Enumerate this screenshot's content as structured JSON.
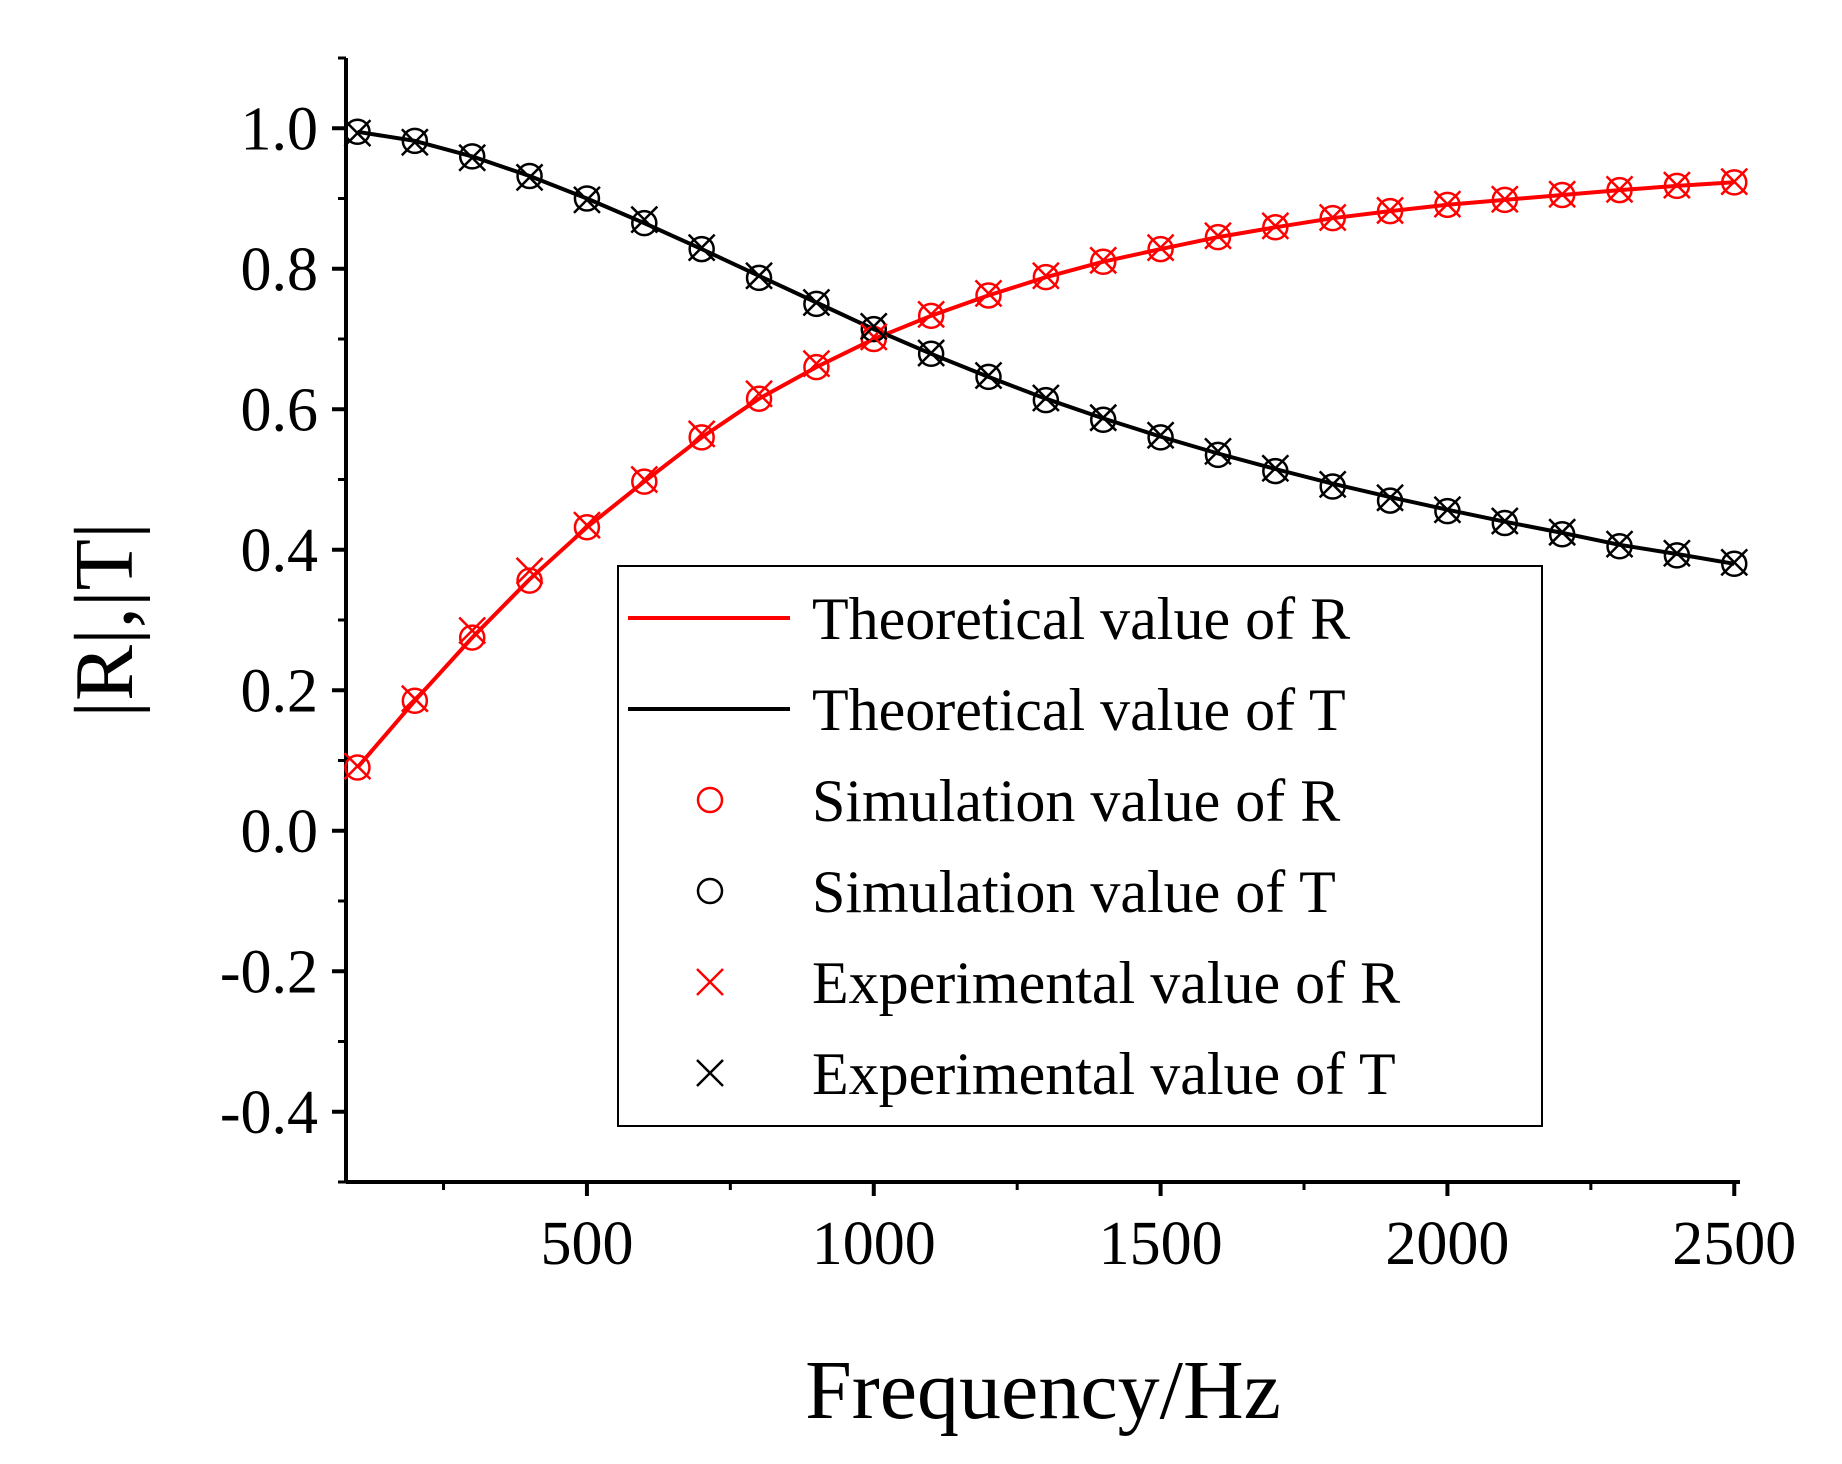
{
  "chart_data": {
    "type": "line",
    "title": "",
    "xlabel": "Frequency/Hz",
    "ylabel": "|R|,|T|",
    "xlim": [
      80,
      2510
    ],
    "ylim": [
      -0.5,
      1.1
    ],
    "xticks": [
      500,
      1000,
      1500,
      2000,
      2500
    ],
    "xtick_labels": [
      "500",
      "1000",
      "1500",
      "2000",
      "2500"
    ],
    "yticks": [
      -0.4,
      -0.2,
      0.0,
      0.2,
      0.4,
      0.6,
      0.8,
      1.0
    ],
    "ytick_labels": [
      "-0.4",
      "-0.2",
      "0.0",
      "0.2",
      "0.4",
      "0.6",
      "0.8",
      "1.0"
    ],
    "grid": false,
    "legend_position": "bottom-right",
    "x": [
      100,
      200,
      300,
      400,
      500,
      600,
      700,
      800,
      900,
      1000,
      1100,
      1200,
      1300,
      1400,
      1500,
      1600,
      1700,
      1800,
      1900,
      2000,
      2100,
      2200,
      2300,
      2400,
      2500
    ],
    "series": [
      {
        "name": "Theoretical value of R",
        "style": "line",
        "color": "#ff0000",
        "values": [
          0.09,
          0.185,
          0.275,
          0.358,
          0.432,
          0.497,
          0.56,
          0.615,
          0.66,
          0.7,
          0.733,
          0.762,
          0.788,
          0.81,
          0.828,
          0.845,
          0.859,
          0.872,
          0.882,
          0.891,
          0.898,
          0.905,
          0.912,
          0.918,
          0.923
        ]
      },
      {
        "name": "Theoretical value of T",
        "style": "line",
        "color": "#000000",
        "values": [
          0.995,
          0.982,
          0.96,
          0.932,
          0.9,
          0.865,
          0.828,
          0.79,
          0.752,
          0.714,
          0.679,
          0.646,
          0.615,
          0.587,
          0.561,
          0.537,
          0.515,
          0.494,
          0.475,
          0.457,
          0.44,
          0.424,
          0.407,
          0.394,
          0.38
        ]
      },
      {
        "name": "Simulation value of R",
        "style": "circle",
        "color": "#ff0000",
        "values": [
          0.09,
          0.185,
          0.275,
          0.356,
          0.432,
          0.497,
          0.56,
          0.615,
          0.66,
          0.7,
          0.733,
          0.762,
          0.788,
          0.81,
          0.828,
          0.845,
          0.859,
          0.872,
          0.882,
          0.891,
          0.898,
          0.905,
          0.912,
          0.918,
          0.923
        ]
      },
      {
        "name": "Simulation value of T",
        "style": "circle",
        "color": "#000000",
        "values": [
          0.995,
          0.982,
          0.96,
          0.932,
          0.9,
          0.865,
          0.828,
          0.787,
          0.75,
          0.714,
          0.679,
          0.646,
          0.613,
          0.585,
          0.56,
          0.535,
          0.512,
          0.49,
          0.47,
          0.455,
          0.438,
          0.422,
          0.405,
          0.392,
          0.38
        ]
      },
      {
        "name": "Experimental value of R",
        "style": "cross",
        "color": "#ff0000",
        "values": [
          0.092,
          0.188,
          0.285,
          0.37,
          0.435,
          0.5,
          0.565,
          0.622,
          0.665,
          0.703,
          0.735,
          0.765,
          0.79,
          0.812,
          0.83,
          0.847,
          0.861,
          0.873,
          0.883,
          0.892,
          0.899,
          0.906,
          0.913,
          0.919,
          0.924
        ]
      },
      {
        "name": "Experimental value of T",
        "style": "cross",
        "color": "#000000",
        "values": [
          0.993,
          0.98,
          0.958,
          0.93,
          0.898,
          0.87,
          0.83,
          0.79,
          0.752,
          0.718,
          0.68,
          0.648,
          0.616,
          0.588,
          0.563,
          0.54,
          0.516,
          0.493,
          0.474,
          0.457,
          0.441,
          0.425,
          0.408,
          0.395,
          0.382
        ]
      }
    ]
  }
}
